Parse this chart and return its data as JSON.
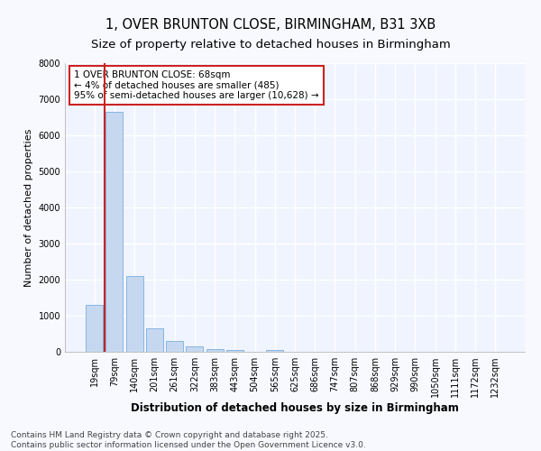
{
  "title1": "1, OVER BRUNTON CLOSE, BIRMINGHAM, B31 3XB",
  "title2": "Size of property relative to detached houses in Birmingham",
  "xlabel": "Distribution of detached houses by size in Birmingham",
  "ylabel": "Number of detached properties",
  "categories": [
    "19sqm",
    "79sqm",
    "140sqm",
    "201sqm",
    "261sqm",
    "322sqm",
    "383sqm",
    "443sqm",
    "504sqm",
    "565sqm",
    "625sqm",
    "686sqm",
    "747sqm",
    "807sqm",
    "868sqm",
    "929sqm",
    "990sqm",
    "1050sqm",
    "1111sqm",
    "1172sqm",
    "1232sqm"
  ],
  "values": [
    1300,
    6650,
    2100,
    650,
    310,
    140,
    75,
    50,
    0,
    55,
    0,
    0,
    0,
    0,
    0,
    0,
    0,
    0,
    0,
    0,
    0
  ],
  "bar_color": "#c5d8f0",
  "bar_edge_color": "#7aaedc",
  "vline_color": "#cc2222",
  "vline_x_index": 1,
  "annotation_text": "1 OVER BRUNTON CLOSE: 68sqm\n← 4% of detached houses are smaller (485)\n95% of semi-detached houses are larger (10,628) →",
  "annotation_box_facecolor": "#ffffff",
  "annotation_box_edgecolor": "#cc2222",
  "ylim": [
    0,
    8000
  ],
  "yticks": [
    0,
    1000,
    2000,
    3000,
    4000,
    5000,
    6000,
    7000,
    8000
  ],
  "footer": "Contains HM Land Registry data © Crown copyright and database right 2025.\nContains public sector information licensed under the Open Government Licence v3.0.",
  "bg_color": "#f8f9ff",
  "plot_bg_color": "#f0f4ff",
  "grid_color": "#ffffff",
  "title1_fontsize": 10.5,
  "title2_fontsize": 9.5,
  "xlabel_fontsize": 8.5,
  "ylabel_fontsize": 8,
  "tick_fontsize": 7,
  "annot_fontsize": 7.5,
  "footer_fontsize": 6.5
}
